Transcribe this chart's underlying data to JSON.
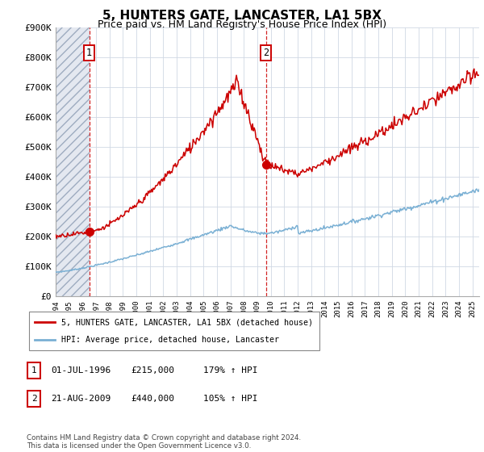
{
  "title": "5, HUNTERS GATE, LANCASTER, LA1 5BX",
  "subtitle": "Price paid vs. HM Land Registry's House Price Index (HPI)",
  "ylim": [
    0,
    900000
  ],
  "yticks": [
    0,
    100000,
    200000,
    300000,
    400000,
    500000,
    600000,
    700000,
    800000,
    900000
  ],
  "ytick_labels": [
    "£0",
    "£100K",
    "£200K",
    "£300K",
    "£400K",
    "£500K",
    "£600K",
    "£700K",
    "£800K",
    "£900K"
  ],
  "hpi_color": "#7ab0d4",
  "price_color": "#cc0000",
  "sale1_x": 1996.5,
  "sale1_y": 215000,
  "sale1_label": "1",
  "sale2_x": 2009.65,
  "sale2_y": 440000,
  "sale2_label": "2",
  "xmin": 1994.0,
  "xmax": 2025.5,
  "legend_entry1": "5, HUNTERS GATE, LANCASTER, LA1 5BX (detached house)",
  "legend_entry2": "HPI: Average price, detached house, Lancaster",
  "table_row1": [
    "1",
    "01-JUL-1996",
    "£215,000",
    "179% ↑ HPI"
  ],
  "table_row2": [
    "2",
    "21-AUG-2009",
    "£440,000",
    "105% ↑ HPI"
  ],
  "footer": "Contains HM Land Registry data © Crown copyright and database right 2024.\nThis data is licensed under the Open Government Licence v3.0.",
  "grid_color": "#d0d8e4",
  "title_fontsize": 11,
  "subtitle_fontsize": 9,
  "axis_fontsize": 8
}
